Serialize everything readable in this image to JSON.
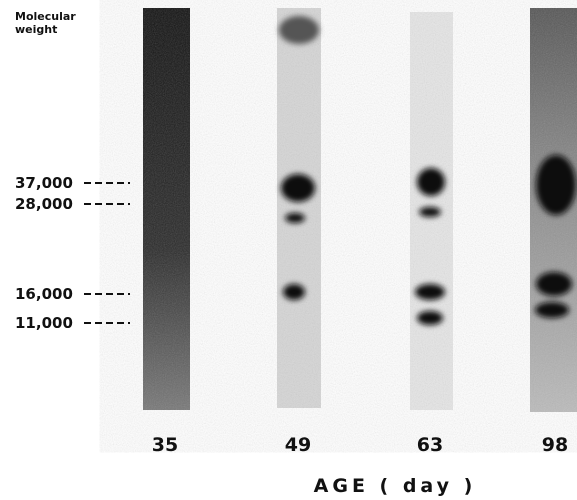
{
  "axis_label": "Molecular weight",
  "markers": [
    "37,000",
    "28,000",
    "16,000",
    "11,000"
  ],
  "lanes": [
    "35",
    "49",
    "63",
    "98"
  ],
  "x_axis_title": "AGE ( day )"
}
